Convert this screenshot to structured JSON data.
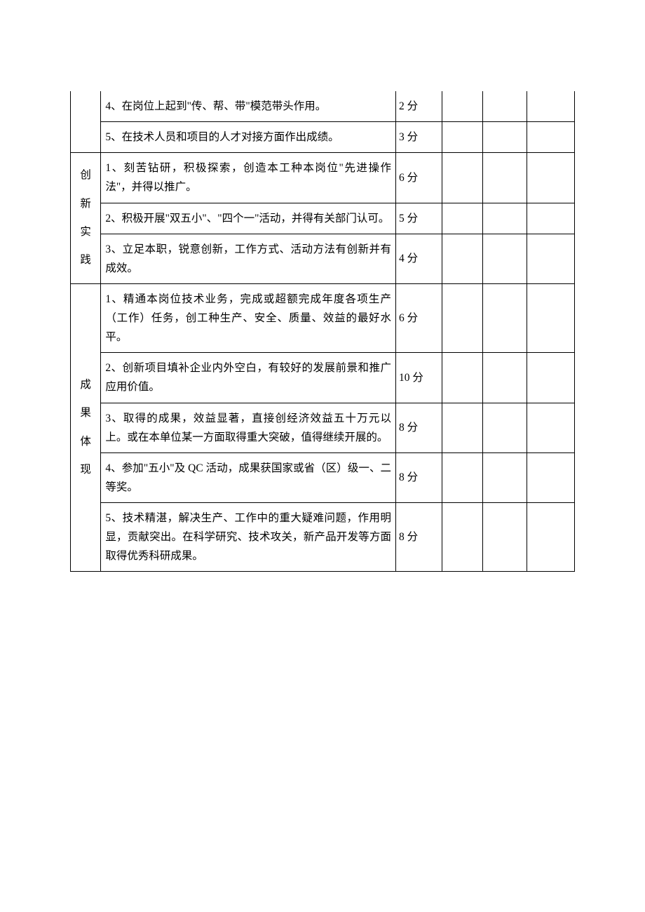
{
  "score_unit": "分",
  "sections": [
    {
      "category": "",
      "top_open": true,
      "rows": [
        {
          "desc": "4、在岗位上起到\"传、帮、带\"模范带头作用。",
          "score": "2"
        },
        {
          "desc": "5、在技术人员和项目的人才对接方面作出成绩。",
          "score": "3"
        }
      ]
    },
    {
      "category": "创新实践",
      "rows": [
        {
          "desc": "1、刻苦钻研，积极探索，创造本工种本岗位\"先进操作法\"，并得以推广。",
          "score": "6"
        },
        {
          "desc": "2、积极开展\"双五小\"、\"四个一\"活动，并得有关部门认可。",
          "score": "5"
        },
        {
          "desc": "3、立足本职，锐意创新，工作方式、活动方法有创新并有成效。",
          "score": "4"
        }
      ]
    },
    {
      "category": "成果体现",
      "rows": [
        {
          "desc": "1、精通本岗位技术业务，完成或超额完成年度各项生产（工作）任务，创工种生产、安全、质量、效益的最好水平。",
          "score": "6"
        },
        {
          "desc": "2、创新项目填补企业内外空白，有较好的发展前景和推广应用价值。",
          "score": "10"
        },
        {
          "desc": "3、取得的成果，效益显著，直接创经济效益五十万元以上。或在本单位某一方面取得重大突破，值得继续开展的。",
          "score": "8"
        },
        {
          "desc": "4、参加\"五小\"及 QC 活动，成果获国家或省（区）级一、二等奖。",
          "score": "8"
        },
        {
          "desc": "5、技术精湛，解决生产、工作中的重大疑难问题，作用明显，贡献突出。在科学研究、技术攻关，新产品开发等方面取得优秀科研成果。",
          "score": "8"
        }
      ]
    }
  ]
}
